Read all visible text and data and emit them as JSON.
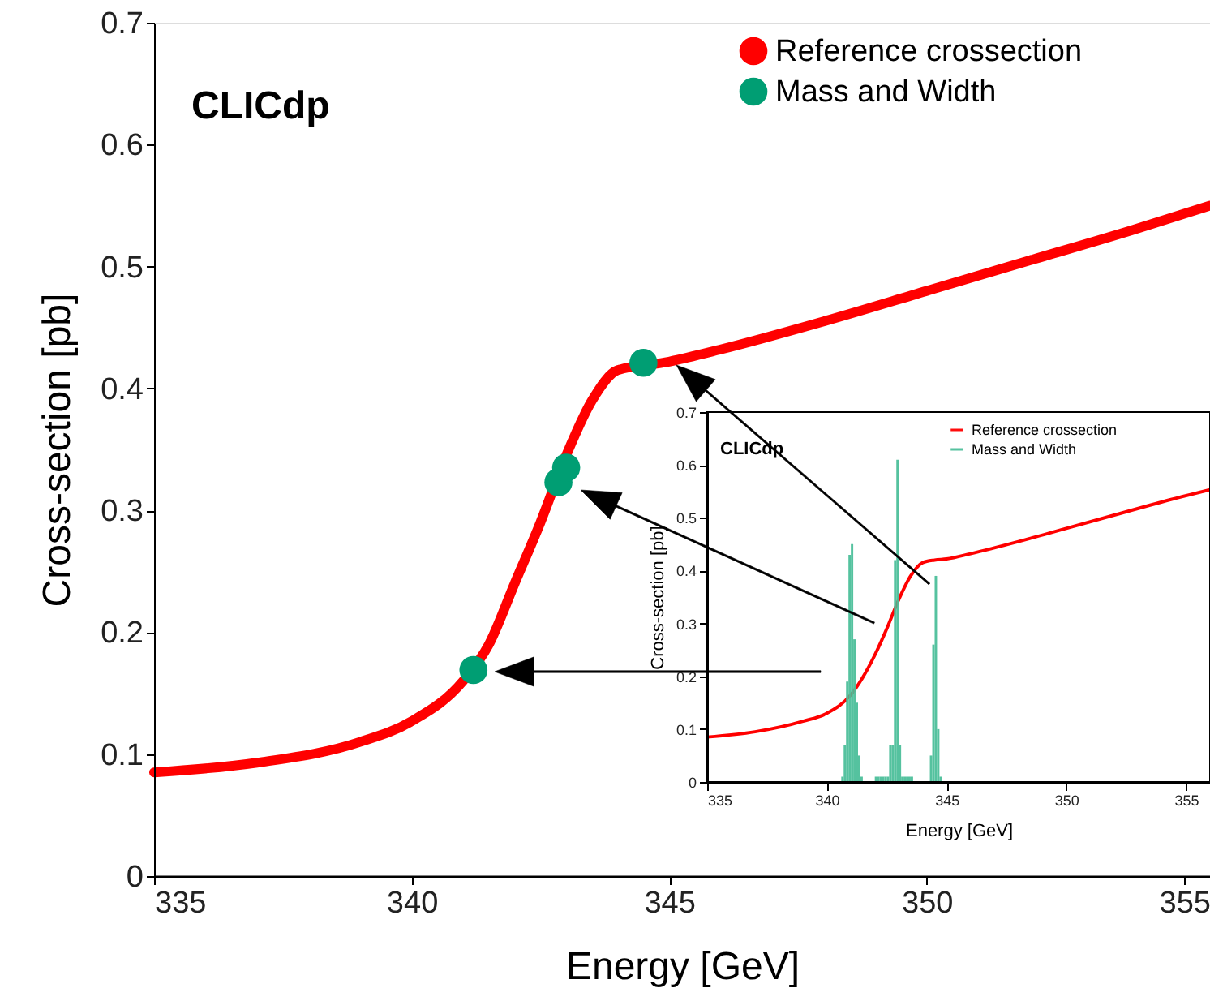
{
  "chart_data": [
    {
      "type": "line",
      "xlabel": "Energy [GeV]",
      "ylabel": "Cross-section [pb]",
      "xlim": [
        335,
        355.5
      ],
      "xticks": [
        335,
        340,
        345,
        350,
        355
      ],
      "ylim": [
        0,
        0.7
      ],
      "yticks": [
        0,
        0.1,
        0.2,
        0.3,
        0.4,
        0.5,
        0.6,
        0.7
      ],
      "annotations": [
        "CLICdp"
      ],
      "legend": "top right",
      "grid": false,
      "series": [
        {
          "name": "Reference crossection",
          "color": "#ff0000",
          "type": "line",
          "line_style": "solid",
          "x": [
            335,
            337,
            339,
            340,
            341,
            341.5,
            342,
            342.5,
            343,
            343.5,
            344,
            345,
            346,
            348,
            350,
            352,
            354,
            355.5
          ],
          "values": [
            0.085,
            0.093,
            0.11,
            0.127,
            0.16,
            0.19,
            0.24,
            0.29,
            0.345,
            0.39,
            0.415,
            0.422,
            0.432,
            0.455,
            0.48,
            0.505,
            0.53,
            0.55
          ]
        },
        {
          "name": "Mass and Width",
          "color": "#009e73",
          "type": "scatter",
          "marker": "circle",
          "x": [
            341.2,
            342.85,
            343.0,
            344.5
          ],
          "values": [
            0.169,
            0.323,
            0.335,
            0.421
          ]
        }
      ]
    },
    {
      "type": "line",
      "xlabel": "Energy [GeV]",
      "ylabel": "Cross-section [pb]",
      "xlim": [
        335,
        356
      ],
      "xticks": [
        335,
        340,
        345,
        350,
        355
      ],
      "ylim": [
        0,
        0.7
      ],
      "yticks": [
        0,
        0.1,
        0.2,
        0.3,
        0.4,
        0.5,
        0.6,
        0.7
      ],
      "annotations": [
        "CLICdp"
      ],
      "legend": "top right",
      "grid": false,
      "series": [
        {
          "name": "Reference crossection",
          "color": "#ff0000",
          "type": "line",
          "line_style": "solid",
          "x": [
            335,
            337,
            339,
            340,
            341,
            342,
            342.5,
            343,
            343.5,
            344,
            344.5,
            345,
            346,
            348,
            350,
            352,
            354,
            356
          ],
          "values": [
            0.085,
            0.095,
            0.115,
            0.13,
            0.165,
            0.24,
            0.29,
            0.345,
            0.39,
            0.415,
            0.42,
            0.422,
            0.432,
            0.455,
            0.48,
            0.505,
            0.53,
            0.553
          ]
        },
        {
          "name": "Mass and Width",
          "color": "#4cbf9a",
          "type": "histogram",
          "bins": [
            340.6,
            340.7,
            340.8,
            340.9,
            341.0,
            341.1,
            341.2,
            341.3,
            341.4,
            341.5,
            341.6,
            341.7,
            341.8,
            341.9,
            342.0,
            342.1,
            342.2,
            342.3,
            342.4,
            342.5,
            342.6,
            342.7,
            342.8,
            342.9,
            343.0,
            343.1,
            343.2,
            343.3,
            343.4,
            343.5,
            343.6,
            343.7,
            343.8,
            343.9,
            344.0,
            344.1,
            344.2,
            344.3,
            344.4,
            344.5,
            344.6,
            344.7,
            344.8
          ],
          "values": [
            0.01,
            0.07,
            0.19,
            0.43,
            0.45,
            0.27,
            0.15,
            0.05,
            0.01,
            0,
            0,
            0,
            0,
            0,
            0.01,
            0.01,
            0.01,
            0.01,
            0.01,
            0.01,
            0.07,
            0.07,
            0.42,
            0.61,
            0.07,
            0.01,
            0.01,
            0.01,
            0.01,
            0.01,
            0,
            0,
            0,
            0,
            0,
            0,
            0,
            0.05,
            0.26,
            0.39,
            0.1,
            0.01
          ]
        }
      ]
    }
  ]
}
